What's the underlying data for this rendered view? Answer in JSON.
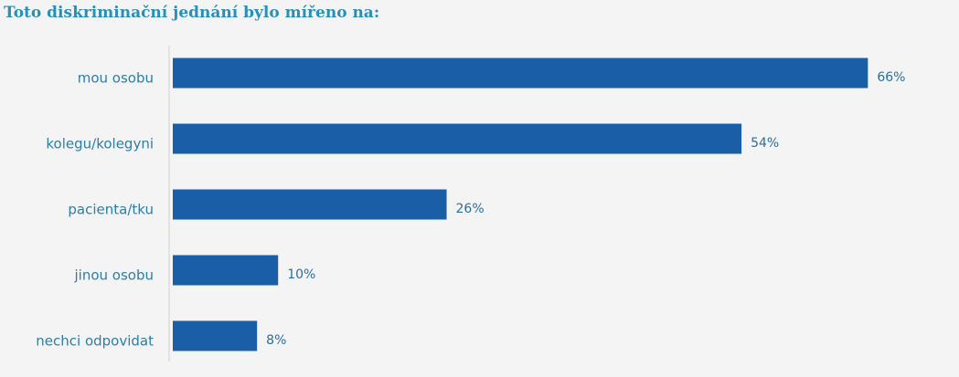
{
  "chart_data": {
    "type": "bar",
    "orientation": "horizontal",
    "title": "Toto diskriminační jednání bylo mířeno na:",
    "categories": [
      "mou osobu",
      "kolegu/kolegyni",
      "pacienta/tku",
      "jinou osobu",
      "nechci odpovidat"
    ],
    "values": [
      66,
      54,
      26,
      10,
      8
    ],
    "value_labels": [
      "66%",
      "54%",
      "26%",
      "10%",
      "8%"
    ],
    "color": "#1a5ea8"
  }
}
